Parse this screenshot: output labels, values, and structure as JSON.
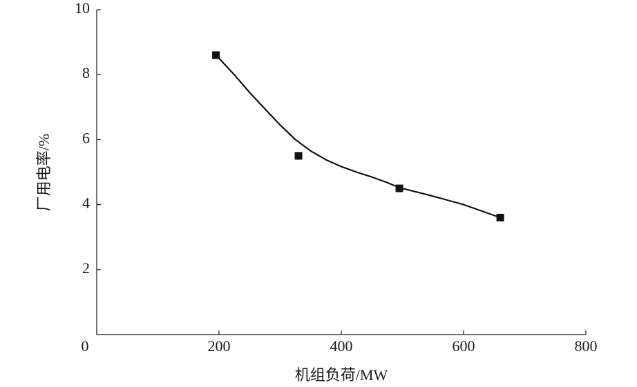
{
  "chart_data": {
    "type": "scatter",
    "x_label": "机组负荷/MW",
    "y_label": "厂用电率/%",
    "points": {
      "x": [
        195,
        330,
        495,
        660
      ],
      "y": [
        8.6,
        5.5,
        4.5,
        3.6
      ]
    },
    "curve": {
      "x": [
        195,
        225,
        250,
        275,
        300,
        325,
        350,
        375,
        400,
        425,
        450,
        475,
        495,
        525,
        550,
        575,
        600,
        630,
        660
      ],
      "y": [
        8.6,
        8.0,
        7.45,
        6.95,
        6.45,
        6.0,
        5.65,
        5.38,
        5.17,
        5.0,
        4.85,
        4.68,
        4.52,
        4.38,
        4.26,
        4.13,
        4.0,
        3.8,
        3.6
      ]
    },
    "color": "#111111",
    "xlim": [
      0,
      800
    ],
    "xticks": [
      0,
      200,
      400,
      600,
      800
    ],
    "ylim": [
      0,
      10
    ],
    "yticks": [
      2,
      4,
      6,
      8,
      10
    ]
  }
}
